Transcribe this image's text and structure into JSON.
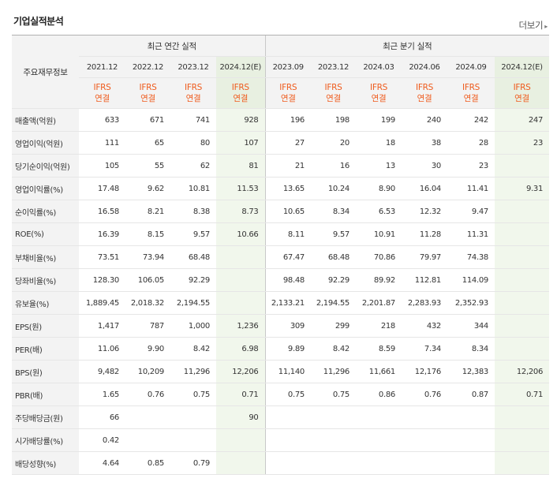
{
  "header": {
    "title": "기업실적분석",
    "more_label": "더보기"
  },
  "table": {
    "row_header": "주요재무정보",
    "annual_title": "최근 연간 실적",
    "quarter_title": "최근 분기 실적",
    "annual_periods": [
      "2021.12",
      "2022.12",
      "2023.12",
      "2024.12(E)"
    ],
    "quarter_periods": [
      "2023.09",
      "2023.12",
      "2024.03",
      "2024.06",
      "2024.09",
      "2024.12(E)"
    ],
    "ifrs_top": "IFRS",
    "ifrs_bottom": "연결",
    "rows": [
      {
        "label": "매출액(억원)",
        "values": [
          "633",
          "671",
          "741",
          "928",
          "196",
          "198",
          "199",
          "240",
          "242",
          "247"
        ]
      },
      {
        "label": "영업이익(억원)",
        "values": [
          "111",
          "65",
          "80",
          "107",
          "27",
          "20",
          "18",
          "38",
          "28",
          "23"
        ]
      },
      {
        "label": "당기순이익(억원)",
        "values": [
          "105",
          "55",
          "62",
          "81",
          "21",
          "16",
          "13",
          "30",
          "23",
          ""
        ]
      },
      {
        "label": "영업이익률(%)",
        "values": [
          "17.48",
          "9.62",
          "10.81",
          "11.53",
          "13.65",
          "10.24",
          "8.90",
          "16.04",
          "11.41",
          "9.31"
        ]
      },
      {
        "label": "순이익률(%)",
        "values": [
          "16.58",
          "8.21",
          "8.38",
          "8.73",
          "10.65",
          "8.34",
          "6.53",
          "12.32",
          "9.47",
          ""
        ]
      },
      {
        "label": "ROE(%)",
        "values": [
          "16.39",
          "8.15",
          "9.57",
          "10.66",
          "8.11",
          "9.57",
          "10.91",
          "11.28",
          "11.31",
          ""
        ]
      },
      {
        "label": "부채비율(%)",
        "values": [
          "73.51",
          "73.94",
          "68.48",
          "",
          "67.47",
          "68.48",
          "70.86",
          "79.97",
          "74.38",
          ""
        ]
      },
      {
        "label": "당좌비율(%)",
        "values": [
          "128.30",
          "106.05",
          "92.29",
          "",
          "98.48",
          "92.29",
          "89.92",
          "112.81",
          "114.09",
          ""
        ]
      },
      {
        "label": "유보율(%)",
        "values": [
          "1,889.45",
          "2,018.32",
          "2,194.55",
          "",
          "2,133.21",
          "2,194.55",
          "2,201.87",
          "2,283.93",
          "2,352.93",
          ""
        ]
      },
      {
        "label": "EPS(원)",
        "values": [
          "1,417",
          "787",
          "1,000",
          "1,236",
          "309",
          "299",
          "218",
          "432",
          "344",
          ""
        ]
      },
      {
        "label": "PER(배)",
        "values": [
          "11.06",
          "9.90",
          "8.42",
          "6.98",
          "9.89",
          "8.42",
          "8.59",
          "7.34",
          "8.34",
          ""
        ]
      },
      {
        "label": "BPS(원)",
        "values": [
          "9,482",
          "10,209",
          "11,296",
          "12,206",
          "11,140",
          "11,296",
          "11,661",
          "12,176",
          "12,383",
          "12,206"
        ]
      },
      {
        "label": "PBR(배)",
        "values": [
          "1.65",
          "0.76",
          "0.75",
          "0.71",
          "0.75",
          "0.75",
          "0.86",
          "0.76",
          "0.87",
          "0.71"
        ]
      },
      {
        "label": "주당배당금(원)",
        "values": [
          "66",
          "",
          "",
          "90",
          "",
          "",
          "",
          "",
          "",
          ""
        ]
      },
      {
        "label": "시가배당률(%)",
        "values": [
          "0.42",
          "",
          "",
          "",
          "",
          "",
          "",
          "",
          "",
          ""
        ]
      },
      {
        "label": "배당성향(%)",
        "values": [
          "4.64",
          "0.85",
          "0.79",
          "",
          "",
          "",
          "",
          "",
          "",
          ""
        ]
      }
    ]
  }
}
